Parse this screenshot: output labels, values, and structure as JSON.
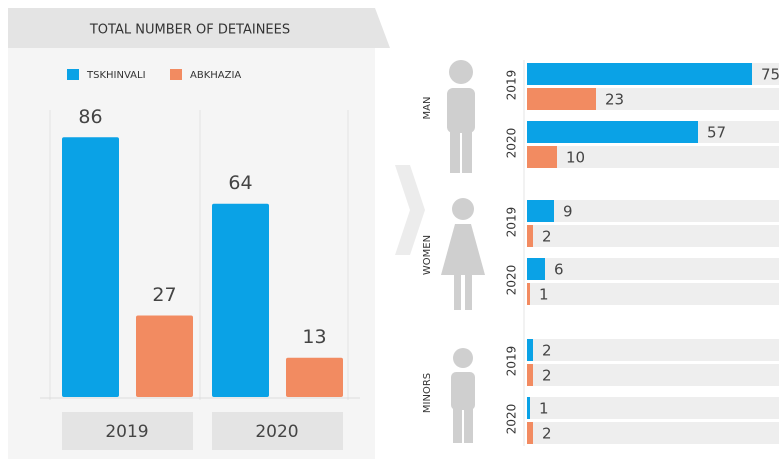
{
  "chart_data": [
    {
      "type": "bar",
      "title": "TOTAL NUMBER OF DETAINEES",
      "categories": [
        "2019",
        "2020"
      ],
      "series": [
        {
          "name": "TSKHINVALI",
          "color": "#0aa2e6",
          "values": [
            86,
            64
          ]
        },
        {
          "name": "ABKHAZIA",
          "color": "#f28b61",
          "values": [
            27,
            13
          ]
        }
      ]
    },
    {
      "type": "hbar",
      "groups": [
        {
          "label": "MAN",
          "categories": [
            "2019",
            "2020"
          ],
          "series": [
            {
              "values": [
                75,
                57
              ]
            },
            {
              "values": [
                23,
                10
              ]
            }
          ]
        },
        {
          "label": "WOMEN",
          "categories": [
            "2019",
            "2020"
          ],
          "series": [
            {
              "values": [
                9,
                6
              ]
            },
            {
              "values": [
                2,
                1
              ]
            }
          ]
        },
        {
          "label": "MINORS",
          "categories": [
            "2019",
            "2020"
          ],
          "series": [
            {
              "values": [
                2,
                1
              ]
            },
            {
              "values": [
                2,
                2
              ]
            }
          ]
        }
      ]
    }
  ]
}
